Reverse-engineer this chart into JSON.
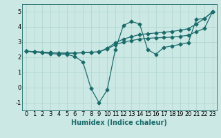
{
  "xlabel": "Humidex (Indice chaleur)",
  "bg_color": "#cce8e4",
  "grid_color": "#b0d8d2",
  "line_color": "#1a6b6b",
  "xlim": [
    -0.5,
    23.5
  ],
  "ylim": [
    -1.5,
    5.5
  ],
  "yticks": [
    -1,
    0,
    1,
    2,
    3,
    4,
    5
  ],
  "xticks": [
    0,
    1,
    2,
    3,
    4,
    5,
    6,
    7,
    8,
    9,
    10,
    11,
    12,
    13,
    14,
    15,
    16,
    17,
    18,
    19,
    20,
    21,
    22,
    23
  ],
  "series1_x": [
    0,
    1,
    2,
    3,
    4,
    5,
    6,
    7,
    8,
    9,
    10,
    11,
    12,
    13,
    14,
    15,
    16,
    17,
    18,
    19,
    20,
    21,
    22,
    23
  ],
  "series1_y": [
    2.4,
    2.35,
    2.3,
    2.25,
    2.2,
    2.2,
    2.05,
    1.7,
    -0.05,
    -1.0,
    -0.15,
    2.5,
    4.1,
    4.35,
    4.2,
    2.5,
    2.2,
    2.65,
    2.75,
    2.85,
    2.95,
    4.5,
    4.55,
    5.0
  ],
  "series2_x": [
    0,
    1,
    2,
    3,
    4,
    5,
    6,
    7,
    8,
    9,
    10,
    11,
    12,
    13,
    14,
    15,
    16,
    17,
    18,
    19,
    20,
    21,
    22,
    23
  ],
  "series2_y": [
    2.4,
    2.37,
    2.34,
    2.3,
    2.28,
    2.27,
    2.28,
    2.3,
    2.33,
    2.36,
    2.6,
    2.95,
    3.2,
    3.35,
    3.5,
    3.55,
    3.6,
    3.65,
    3.7,
    3.78,
    3.88,
    4.2,
    4.55,
    5.0
  ],
  "series3_x": [
    0,
    1,
    2,
    3,
    4,
    5,
    6,
    7,
    8,
    9,
    10,
    11,
    12,
    13,
    14,
    15,
    16,
    17,
    18,
    19,
    20,
    21,
    22,
    23
  ],
  "series3_y": [
    2.4,
    2.37,
    2.34,
    2.3,
    2.28,
    2.27,
    2.28,
    2.3,
    2.33,
    2.36,
    2.55,
    2.82,
    3.0,
    3.1,
    3.2,
    3.25,
    3.28,
    3.3,
    3.33,
    3.38,
    3.45,
    3.68,
    3.9,
    5.0
  ],
  "markersize": 2.5,
  "linewidth": 0.9,
  "label_fontsize": 7,
  "tick_fontsize": 6
}
